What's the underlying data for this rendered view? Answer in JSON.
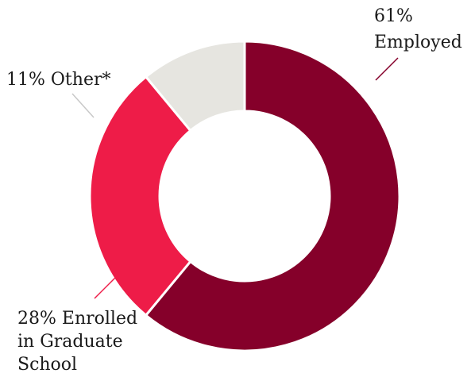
{
  "chart_data": {
    "type": "pie",
    "style": "donut",
    "start_angle_deg": 0,
    "slices": [
      {
        "label": "Employed",
        "percent_text": "61%",
        "value": 61,
        "color": "#85002a",
        "label_lines": [
          "61%",
          "Employed"
        ]
      },
      {
        "label": "Enrolled in Graduate School",
        "percent_text": "28%",
        "value": 28,
        "color": "#ee1c48",
        "label_lines": [
          "28% Enrolled",
          "in Graduate",
          "School"
        ]
      },
      {
        "label": "Other*",
        "percent_text": "11%",
        "value": 11,
        "color": "#e6e5e0",
        "label_lines": [
          "11% Other*"
        ]
      }
    ]
  },
  "colors": {
    "background": "#ffffff",
    "separator": "#ffffff",
    "leader_line": "#c8c8c8",
    "employed_leader": "#85002a",
    "enrolled_leader": "#ee1c48"
  }
}
